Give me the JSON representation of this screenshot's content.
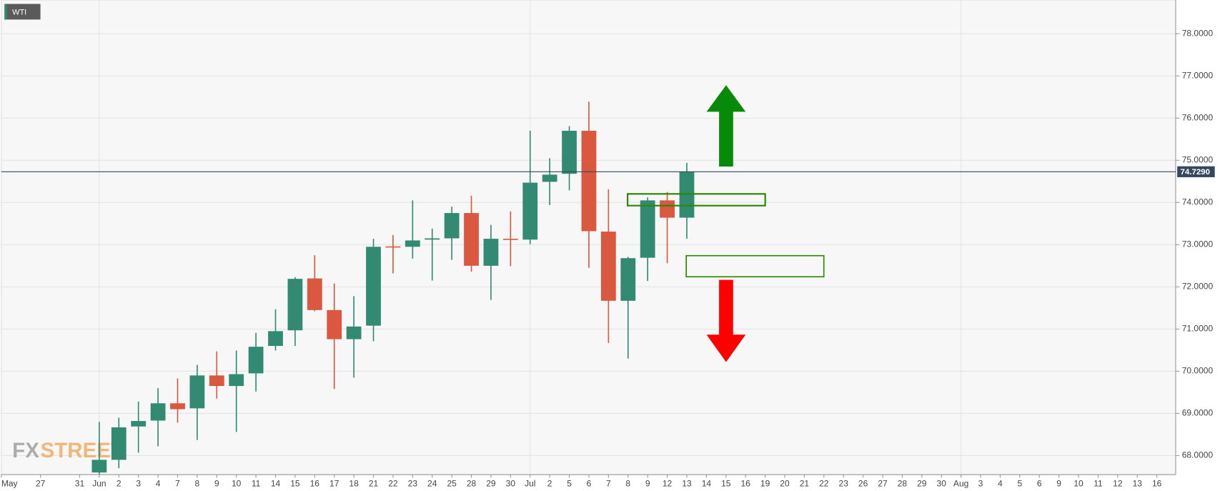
{
  "chart_data": {
    "type": "candlestick",
    "title": "WTI",
    "watermark_parts": [
      "FX",
      "STREET"
    ],
    "categories": [
      "May",
      null,
      "27",
      null,
      "31",
      "Jun",
      "2",
      "3",
      "4",
      "7",
      "8",
      "9",
      "10",
      "11",
      "14",
      "15",
      "16",
      "17",
      "18",
      "21",
      "22",
      "23",
      "24",
      "25",
      "28",
      "29",
      "30",
      "Jul",
      "2",
      "5",
      "6",
      "7",
      "8",
      "9",
      "12",
      "13",
      "14",
      "15",
      "16",
      "19",
      "20",
      "21",
      "22",
      "23",
      "26",
      "27",
      "28",
      "29",
      "30",
      "Aug",
      "3",
      "4",
      "5",
      "6",
      "9",
      "10",
      "11",
      "12",
      "13",
      "16"
    ],
    "month_starts": [
      5,
      27,
      49
    ],
    "open": [
      null,
      null,
      null,
      null,
      null,
      67.6,
      67.9,
      68.69,
      68.83,
      69.24,
      69.12,
      69.9,
      69.65,
      69.95,
      70.6,
      70.97,
      72.2,
      71.45,
      70.76,
      71.08,
      72.96,
      72.95,
      73.12,
      73.15,
      73.75,
      72.5,
      73.14,
      73.12,
      74.49,
      74.68,
      75.7,
      73.31,
      71.67,
      72.69,
      74.05,
      73.64,
      null,
      null,
      null,
      null,
      null,
      null,
      null,
      null,
      null,
      null,
      null,
      null,
      null,
      null,
      null,
      null,
      null,
      null,
      null,
      null,
      null,
      null,
      null,
      null
    ],
    "high": [
      null,
      null,
      null,
      null,
      null,
      68.8,
      68.9,
      69.28,
      69.6,
      69.83,
      70.15,
      70.47,
      70.49,
      70.91,
      71.47,
      72.23,
      72.75,
      72.08,
      71.78,
      73.14,
      73.23,
      74.05,
      73.38,
      73.9,
      74.16,
      73.47,
      73.79,
      75.7,
      75.05,
      75.81,
      76.39,
      74.31,
      72.71,
      74.12,
      74.25,
      74.94,
      null,
      null,
      null,
      null,
      null,
      null,
      null,
      null,
      null,
      null,
      null,
      null,
      null,
      null,
      null,
      null,
      null,
      null,
      null,
      null,
      null,
      null,
      null,
      null
    ],
    "low": [
      null,
      null,
      null,
      null,
      null,
      67.55,
      67.7,
      68.07,
      68.22,
      68.78,
      68.37,
      69.35,
      68.56,
      69.52,
      70.49,
      70.6,
      71.42,
      69.58,
      69.85,
      70.71,
      72.32,
      72.67,
      72.15,
      72.64,
      72.36,
      71.69,
      72.49,
      73.01,
      73.94,
      74.29,
      72.45,
      70.67,
      70.3,
      72.14,
      72.56,
      73.14,
      null,
      null,
      null,
      null,
      null,
      null,
      null,
      null,
      null,
      null,
      null,
      null,
      null,
      null,
      null,
      null,
      null,
      null,
      null,
      null,
      null,
      null,
      null,
      null
    ],
    "close": [
      null,
      null,
      null,
      null,
      null,
      67.9,
      68.67,
      68.82,
      69.24,
      69.1,
      69.9,
      69.65,
      69.93,
      70.58,
      70.95,
      72.19,
      71.45,
      70.76,
      71.06,
      72.95,
      72.94,
      73.1,
      73.15,
      73.75,
      72.5,
      73.14,
      73.12,
      74.47,
      74.66,
      75.7,
      73.32,
      71.67,
      72.68,
      74.05,
      73.64,
      74.73,
      null,
      null,
      null,
      null,
      null,
      null,
      null,
      null,
      null,
      null,
      null,
      null,
      null,
      null,
      null,
      null,
      null,
      null,
      null,
      null,
      null,
      null,
      null,
      null
    ],
    "up_color": "#338a73",
    "down_color": "#d9583f",
    "last_price": {
      "value": 74.729,
      "label": "74.7290"
    },
    "last_price_color": "#34495e",
    "ylim": [
      67.55,
      78.8
    ],
    "yticks": [
      {
        "value": 68,
        "label": "68.0000"
      },
      {
        "value": 69,
        "label": "69.0000"
      },
      {
        "value": 70,
        "label": "70.0000"
      },
      {
        "value": 71,
        "label": "71.0000"
      },
      {
        "value": 72,
        "label": "72.0000"
      },
      {
        "value": 73,
        "label": "73.0000"
      },
      {
        "value": 74,
        "label": "74.0000"
      },
      {
        "value": 75,
        "label": "75.0000"
      },
      {
        "value": 76,
        "label": "76.0000"
      },
      {
        "value": 77,
        "label": "77.0000"
      },
      {
        "value": 78,
        "label": "78.0000"
      }
    ],
    "grid": true
  }
}
